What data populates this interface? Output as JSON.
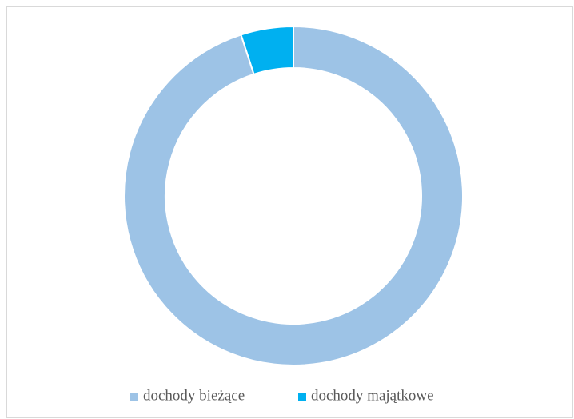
{
  "chart_data": {
    "type": "donut",
    "categories": [
      "dochody bieżące",
      "dochody majątkowe"
    ],
    "values": [
      95,
      5
    ],
    "colors": [
      "#9dc3e6",
      "#00b0f0"
    ],
    "legend": "bottom"
  }
}
